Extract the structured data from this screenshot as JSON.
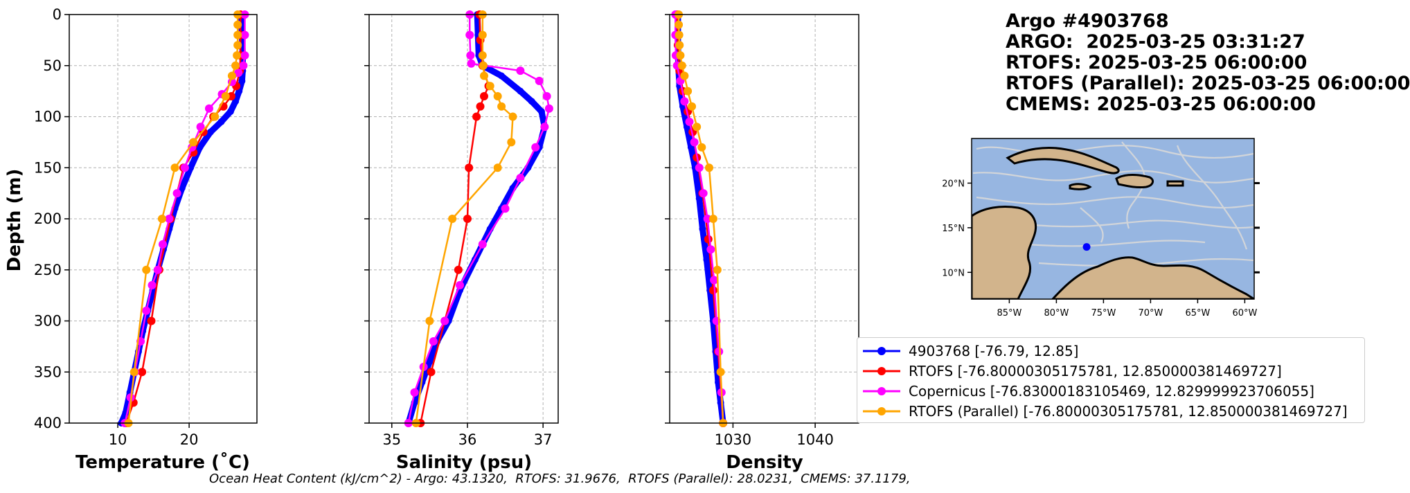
{
  "header": {
    "line1": "Argo #4903768",
    "line2": "ARGO:  2025-03-25 03:31:27",
    "line3": "RTOFS: 2025-03-25 06:00:00",
    "line4": "RTOFS (Parallel): 2025-03-25 06:00:00",
    "line5": "CMEMS: 2025-03-25 06:00:00"
  },
  "footer": "Ocean Heat Content (kJ/cm^2) - Argo: 43.1320,  RTOFS: 31.9676,  RTOFS (Parallel): 28.0231,  CMEMS: 37.1179,",
  "colors": {
    "argo": "#0000ff",
    "rtofs": "#ff0000",
    "copernicus": "#ff00ff",
    "parallel": "#ffa500",
    "ocean": "#97b6e1",
    "land": "#d2b48c"
  },
  "legend": [
    {
      "label": "4903768 [-76.79, 12.85]",
      "color": "#0000ff"
    },
    {
      "label": "RTOFS [-76.80000305175781, 12.850000381469727]",
      "color": "#ff0000"
    },
    {
      "label": "Copernicus [-76.83000183105469, 12.829999923706055]",
      "color": "#ff00ff"
    },
    {
      "label": "RTOFS (Parallel) [-76.80000305175781, 12.850000381469727]",
      "color": "#ffa500"
    }
  ],
  "chart_data": [
    {
      "type": "line",
      "xlabel": "Temperature (˚C)",
      "ylabel": "Depth (m)",
      "xlim": [
        3.2,
        29.5
      ],
      "ylim": [
        400,
        0
      ],
      "xticks": [
        10,
        20
      ],
      "yticks": [
        0,
        50,
        100,
        150,
        200,
        250,
        300,
        350,
        400
      ],
      "grid": true,
      "series": [
        {
          "name": "4903768 [-76.79, 12.85]",
          "color": "#0000ff",
          "x": [
            27.3,
            27.4,
            27.5,
            27.5,
            27.4,
            27.0,
            26.5,
            25.8,
            24.5,
            23.0,
            21.5,
            20.2,
            19.0,
            18.0,
            17.2,
            16.4,
            15.6,
            14.9,
            14.2,
            13.5,
            12.9,
            12.3,
            11.7,
            11.1,
            10.5
          ],
          "y": [
            0,
            20,
            40,
            55,
            65,
            75,
            85,
            95,
            105,
            115,
            130,
            150,
            170,
            190,
            210,
            230,
            250,
            270,
            290,
            310,
            330,
            350,
            370,
            390,
            400
          ]
        },
        {
          "name": "RTOFS [-76.80000305175781, 12.850000381469727]",
          "color": "#ff0000",
          "x": [
            27.2,
            27.2,
            27.2,
            27.1,
            26.6,
            25.9,
            24.8,
            23.4,
            22.0,
            20.6,
            19.2,
            17.4,
            15.8,
            14.7,
            13.4,
            12.2,
            11.2
          ],
          "y": [
            0,
            20,
            40,
            55,
            70,
            80,
            90,
            100,
            115,
            135,
            150,
            200,
            250,
            300,
            350,
            380,
            400
          ]
        },
        {
          "name": "Copernicus [-76.83000183105469, 12.829999923706055]",
          "color": "#ff00ff",
          "x": [
            27.8,
            27.8,
            27.8,
            27.6,
            26.9,
            26.0,
            24.6,
            22.8,
            21.6,
            20.4,
            19.4,
            18.3,
            17.2,
            16.3,
            15.6,
            14.8,
            14.0,
            13.2,
            12.4,
            11.8,
            11.0
          ],
          "y": [
            0,
            20,
            40,
            50,
            57,
            66,
            78,
            92,
            110,
            130,
            150,
            175,
            200,
            225,
            250,
            265,
            290,
            320,
            350,
            375,
            400
          ]
        },
        {
          "name": "RTOFS (Parallel) [-76.80000305175781, 12.850000381469727]",
          "color": "#ffa500",
          "x": [
            26.8,
            26.8,
            26.8,
            26.8,
            26.7,
            26.5,
            26.0,
            25.1,
            23.6,
            20.6,
            18.0,
            16.2,
            14.0,
            12.3,
            11.5
          ],
          "y": [
            0,
            10,
            20,
            30,
            40,
            50,
            60,
            80,
            100,
            125,
            150,
            200,
            250,
            350,
            400
          ]
        }
      ]
    },
    {
      "type": "line",
      "xlabel": "Salinity (psu)",
      "xlim": [
        34.7,
        37.2
      ],
      "ylim": [
        400,
        0
      ],
      "xticks": [
        35,
        36,
        37
      ],
      "yticks": [
        0,
        50,
        100,
        150,
        200,
        250,
        300,
        350,
        400
      ],
      "grid": true,
      "series": [
        {
          "name": "4903768 [-76.79, 12.85]",
          "color": "#0000ff",
          "x": [
            36.13,
            36.14,
            36.15,
            36.2,
            36.45,
            36.7,
            36.85,
            36.98,
            37.02,
            36.95,
            36.8,
            36.6,
            36.45,
            36.3,
            36.1,
            35.9,
            35.75,
            35.6,
            35.5,
            35.4,
            35.3,
            35.22
          ],
          "y": [
            0,
            20,
            40,
            50,
            60,
            75,
            85,
            95,
            110,
            130,
            150,
            170,
            190,
            210,
            240,
            270,
            300,
            320,
            340,
            360,
            380,
            400
          ]
        },
        {
          "name": "RTOFS [-76.80000305175781, 12.850000381469727]",
          "color": "#ff0000",
          "x": [
            36.16,
            36.17,
            36.2,
            36.28,
            36.22,
            36.17,
            36.12,
            36.02,
            36.0,
            35.88,
            35.7,
            35.52,
            35.38
          ],
          "y": [
            0,
            25,
            50,
            70,
            80,
            90,
            100,
            150,
            200,
            250,
            300,
            350,
            400
          ]
        },
        {
          "name": "Copernicus [-76.83000183105469, 12.829999923706055]",
          "color": "#ff00ff",
          "x": [
            36.03,
            36.03,
            36.04,
            36.05,
            36.7,
            36.95,
            37.05,
            37.08,
            37.02,
            36.9,
            36.7,
            36.5,
            36.2,
            35.9,
            35.7,
            35.55,
            35.42,
            35.3,
            35.22
          ],
          "y": [
            0,
            20,
            40,
            48,
            55,
            65,
            80,
            92,
            110,
            130,
            160,
            190,
            225,
            265,
            300,
            320,
            345,
            370,
            400
          ]
        },
        {
          "name": "RTOFS (Parallel) [-76.80000305175781, 12.850000381469727]",
          "color": "#ffa500",
          "x": [
            36.2,
            36.2,
            36.2,
            36.21,
            36.22,
            36.3,
            36.4,
            36.45,
            36.6,
            36.58,
            36.4,
            35.8,
            35.5,
            35.32
          ],
          "y": [
            0,
            20,
            40,
            50,
            60,
            70,
            80,
            90,
            100,
            125,
            150,
            200,
            300,
            400
          ]
        }
      ]
    },
    {
      "type": "line",
      "xlabel": "Density",
      "xlim": [
        1022.3,
        1045.3
      ],
      "ylim": [
        400,
        0
      ],
      "xticks": [
        1030,
        1040
      ],
      "yticks": [
        0,
        50,
        100,
        150,
        200,
        250,
        300,
        350,
        400
      ],
      "grid": true,
      "series": [
        {
          "name": "4903768 [-76.79, 12.85]",
          "color": "#0000ff",
          "x": [
            1023.3,
            1023.3,
            1023.35,
            1023.5,
            1023.9,
            1024.4,
            1024.9,
            1025.4,
            1025.9,
            1026.3,
            1026.8,
            1027.2,
            1027.6,
            1027.9,
            1028.2,
            1028.5,
            1028.8
          ],
          "y": [
            0,
            30,
            50,
            70,
            90,
            110,
            130,
            150,
            180,
            210,
            240,
            270,
            300,
            330,
            360,
            380,
            400
          ]
        },
        {
          "name": "RTOFS [-76.80000305175781, 12.850000381469727]",
          "color": "#ff0000",
          "x": [
            1023.2,
            1023.3,
            1023.5,
            1023.9,
            1024.5,
            1025.1,
            1025.6,
            1026.3,
            1027.0,
            1027.6,
            1028.2,
            1028.8
          ],
          "y": [
            0,
            30,
            55,
            75,
            95,
            115,
            140,
            175,
            220,
            270,
            330,
            400
          ]
        },
        {
          "name": "Copernicus [-76.83000183105469, 12.829999923706055]",
          "color": "#ff00ff",
          "x": [
            1023.0,
            1023.0,
            1023.05,
            1023.2,
            1023.6,
            1024.1,
            1024.7,
            1025.3,
            1025.9,
            1026.4,
            1026.9,
            1027.3,
            1027.7,
            1028.0,
            1028.3,
            1028.6,
            1028.8
          ],
          "y": [
            0,
            20,
            40,
            50,
            65,
            85,
            105,
            125,
            150,
            175,
            200,
            230,
            260,
            300,
            330,
            370,
            400
          ]
        },
        {
          "name": "RTOFS (Parallel) [-76.80000305175781, 12.850000381469727]",
          "color": "#ffa500",
          "x": [
            1023.4,
            1023.4,
            1023.45,
            1023.5,
            1023.6,
            1023.8,
            1024.1,
            1024.5,
            1025.0,
            1025.6,
            1026.2,
            1027.1,
            1027.6,
            1028.1,
            1028.5,
            1028.8
          ],
          "y": [
            0,
            10,
            20,
            30,
            40,
            50,
            60,
            75,
            90,
            110,
            130,
            150,
            200,
            250,
            350,
            400
          ]
        }
      ]
    }
  ],
  "map": {
    "lon_ticks": [
      "85°W",
      "80°W",
      "75°W",
      "70°W",
      "65°W",
      "60°W"
    ],
    "lon_values": [
      -85,
      -80,
      -75,
      -70,
      -65,
      -60
    ],
    "lat_ticks": [
      "20°N",
      "15°N",
      "10°N"
    ],
    "lat_values": [
      20,
      15,
      10
    ],
    "extent": {
      "lon": [
        -89,
        -59
      ],
      "lat": [
        7,
        25
      ]
    },
    "argo_position": {
      "lon": -76.79,
      "lat": 12.85
    }
  }
}
